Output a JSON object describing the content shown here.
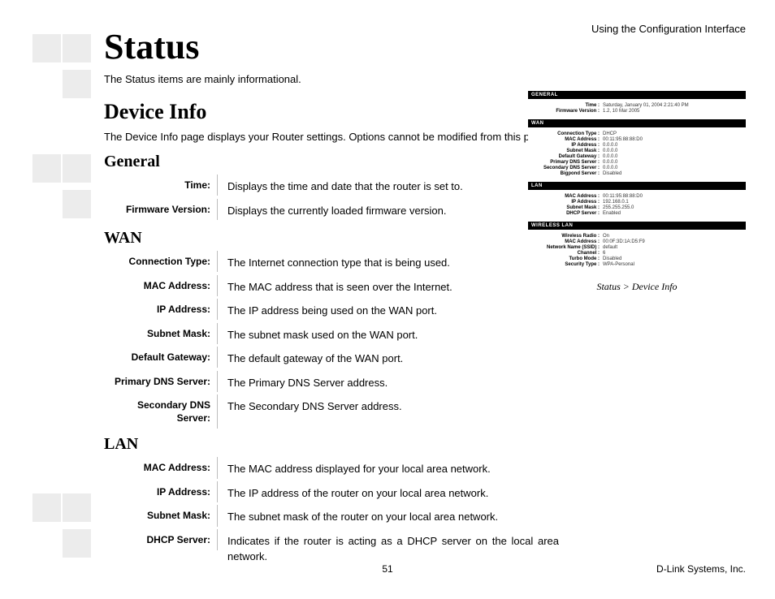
{
  "header_right": "Using the Configuration Interface",
  "title": "Status",
  "intro": "The Status items are mainly informational.",
  "device_info_heading": "Device Info",
  "device_info_desc": "The Device Info page displays your Router settings. Options cannot be modified from this page.",
  "sections": {
    "general": {
      "heading": "General",
      "rows": [
        {
          "label": "Time:",
          "value": "Displays the time and date that the router is set to."
        },
        {
          "label": "Firmware Version:",
          "value": "Displays the currently loaded firmware version."
        }
      ]
    },
    "wan": {
      "heading": "WAN",
      "rows": [
        {
          "label": "Connection Type:",
          "value": "The Internet connection type that is being used."
        },
        {
          "label": "MAC Address:",
          "value": "The MAC address that is seen over the Internet."
        },
        {
          "label": "IP Address:",
          "value": "The IP address being used on the WAN port."
        },
        {
          "label": "Subnet Mask:",
          "value": "The subnet mask used on the WAN port."
        },
        {
          "label": "Default Gateway:",
          "value": "The default gateway of the WAN port."
        },
        {
          "label": "Primary DNS Server:",
          "value": "The Primary DNS Server address."
        },
        {
          "label": "Secondary DNS Server:",
          "value": "The Secondary DNS Server address."
        }
      ]
    },
    "lan": {
      "heading": "LAN",
      "rows": [
        {
          "label": "MAC Address:",
          "value": "The MAC address displayed for your local area network."
        },
        {
          "label": "IP Address:",
          "value": "The IP address of the router on your local area network."
        },
        {
          "label": "Subnet Mask:",
          "value": "The subnet mask of the router on your local area network."
        },
        {
          "label": "DHCP Server:",
          "value": "Indicates if the router is acting as a DHCP server on the local area network."
        }
      ]
    }
  },
  "screenshot": {
    "caption": "Status > Device Info",
    "panels": [
      {
        "title": "GENERAL",
        "rows": [
          {
            "k": "Time :",
            "v": "Saturday, January 01, 2004 2:21:40 PM"
          },
          {
            "k": "Firmware Version :",
            "v": "1.2,   10 Mar 2005"
          }
        ]
      },
      {
        "title": "WAN",
        "rows": [
          {
            "k": "Connection Type :",
            "v": "DHCP"
          },
          {
            "k": "MAC Address :",
            "v": "00:11:95:88:88:D0"
          },
          {
            "k": "IP Address :",
            "v": "0.0.0.0"
          },
          {
            "k": "Subnet Mask :",
            "v": "0.0.0.0"
          },
          {
            "k": "Default Gateway :",
            "v": "0.0.0.0"
          },
          {
            "k": "Primary DNS Server :",
            "v": "0.0.0.0"
          },
          {
            "k": "Secondary DNS Server :",
            "v": "0.0.0.0"
          },
          {
            "k": "Bigpond Server :",
            "v": "Disabled"
          }
        ]
      },
      {
        "title": "LAN",
        "rows": [
          {
            "k": "MAC Address :",
            "v": "00:11:95:88:88:D0"
          },
          {
            "k": "IP Address :",
            "v": "192.168.0.1"
          },
          {
            "k": "Subnet Mask :",
            "v": "255.255.255.0"
          },
          {
            "k": "DHCP Server :",
            "v": "Enabled"
          }
        ]
      },
      {
        "title": "WIRELESS LAN",
        "rows": [
          {
            "k": "Wireless Radio :",
            "v": "On"
          },
          {
            "k": "MAC Address :",
            "v": "00:0F:3D:1A:D5:F9"
          },
          {
            "k": "Network Name (SSID) :",
            "v": "default"
          },
          {
            "k": "Channel :",
            "v": "6"
          },
          {
            "k": "Turbo Mode :",
            "v": "Disabled"
          },
          {
            "k": "Security Type :",
            "v": "WPA-Personal"
          }
        ]
      }
    ]
  },
  "page_number": "51",
  "footer_right": "D-Link Systems, Inc.",
  "colors": {
    "square": "#ececec",
    "divider": "#bdbdbd",
    "bar_bg": "#000000",
    "bar_fg": "#ffffff"
  }
}
